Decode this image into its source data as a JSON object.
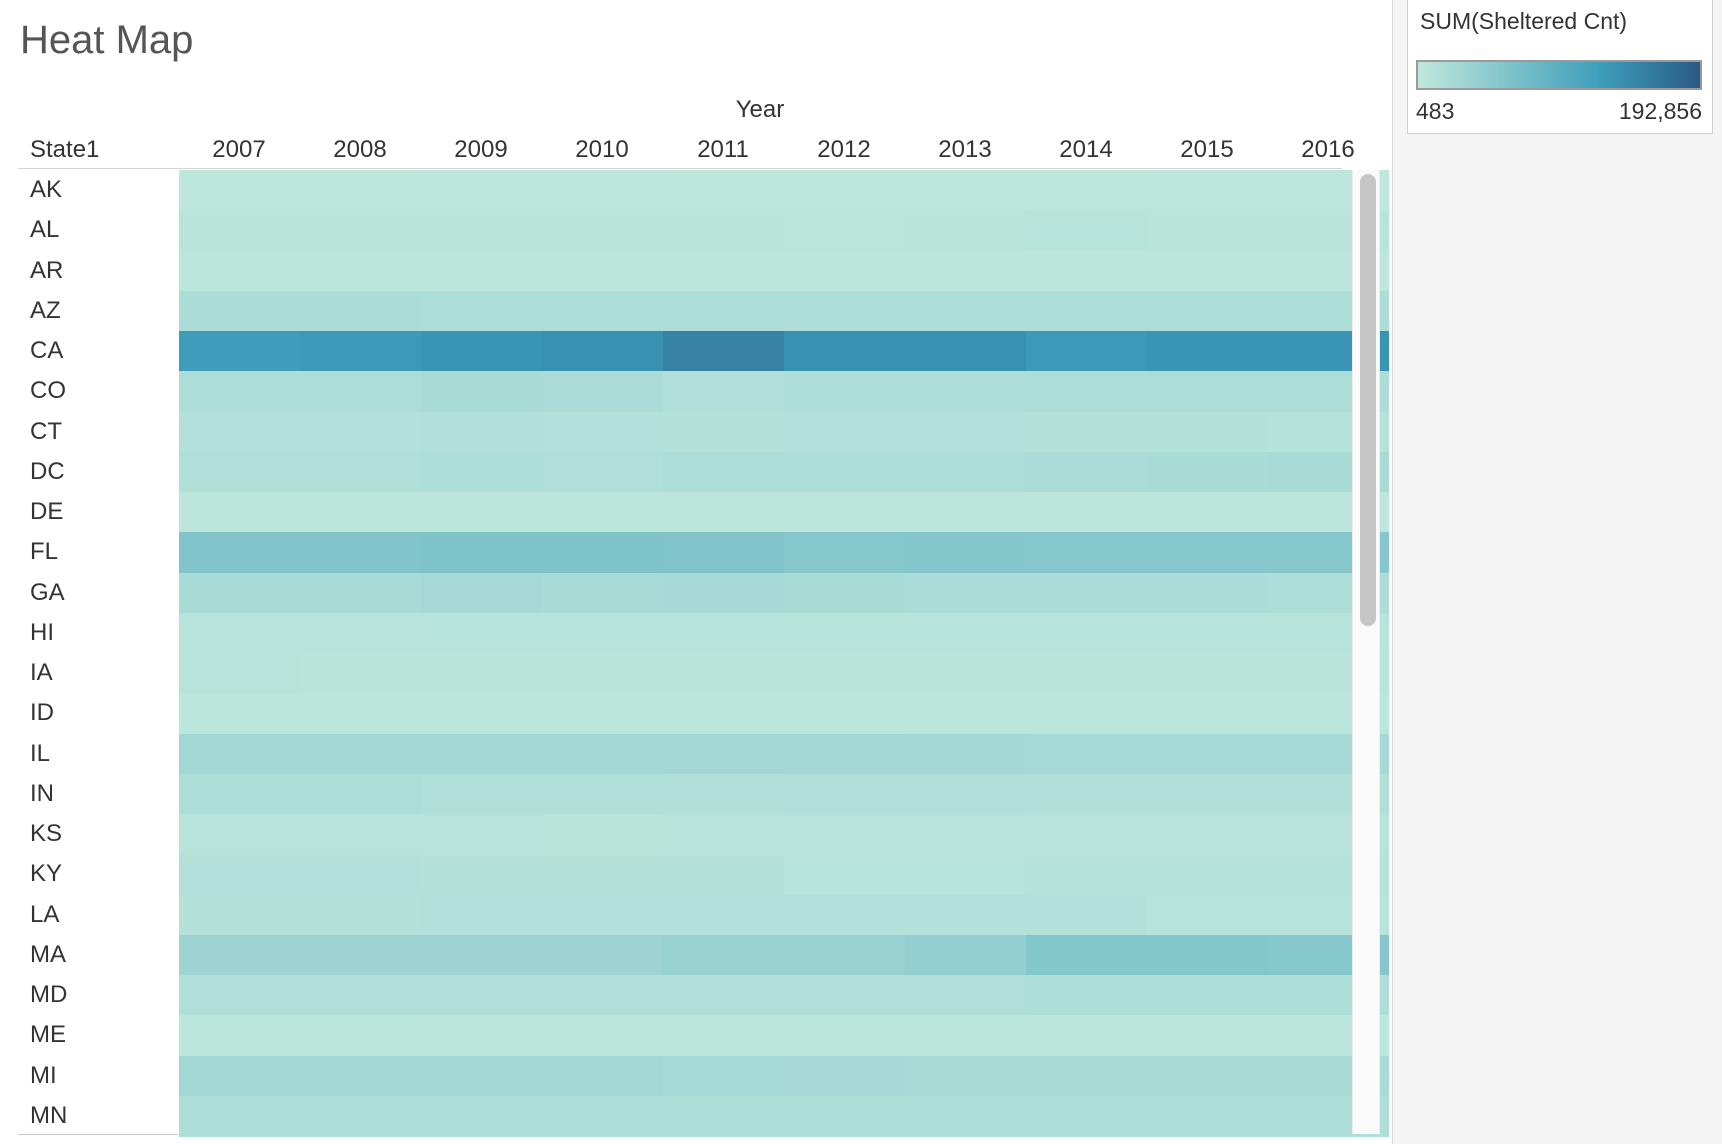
{
  "title": "Heat Map",
  "legend": {
    "title": "SUM(Sheltered Cnt)",
    "min_label": "483",
    "max_label": "192,856",
    "color_low": "#bfe8dc",
    "color_mid": "#3d9dba",
    "color_high": "#2a5a87"
  },
  "chart_data": {
    "type": "heatmap",
    "title": "Heat Map",
    "column_header": "Year",
    "row_header": "State1",
    "measure": "SUM(Sheltered Cnt)",
    "value_range": [
      483,
      192856
    ],
    "years": [
      "2007",
      "2008",
      "2009",
      "2010",
      "2011",
      "2012",
      "2013",
      "2014",
      "2015",
      "2016"
    ],
    "states": [
      "AK",
      "AL",
      "AR",
      "AZ",
      "CA",
      "CO",
      "CT",
      "DC",
      "DE",
      "FL",
      "GA",
      "HI",
      "IA",
      "ID",
      "IL",
      "IN",
      "KS",
      "KY",
      "LA",
      "MA",
      "MD",
      "ME",
      "MI",
      "MN"
    ],
    "values": [
      [
        2500,
        2400,
        2300,
        2300,
        2500,
        2600,
        2500,
        2600,
        2300,
        2300
      ],
      [
        7000,
        7000,
        7500,
        7000,
        6500,
        6000,
        7000,
        9000,
        6500,
        6500
      ],
      [
        4000,
        4000,
        3500,
        3000,
        3500,
        3500,
        3500,
        3000,
        3000,
        3000
      ],
      [
        20000,
        20000,
        19000,
        19000,
        19000,
        18000,
        19000,
        19000,
        18000,
        18000
      ],
      [
        125000,
        130000,
        135000,
        138000,
        152000,
        138000,
        138000,
        130000,
        135000,
        135000
      ],
      [
        18000,
        18000,
        21000,
        20000,
        16000,
        18000,
        17000,
        18000,
        19000,
        19000
      ],
      [
        12000,
        12000,
        13000,
        12000,
        11000,
        12000,
        12000,
        11000,
        11000,
        10000
      ],
      [
        15000,
        15000,
        17000,
        16000,
        18000,
        18000,
        18000,
        20000,
        21000,
        22000
      ],
      [
        3000,
        3000,
        3000,
        3000,
        3000,
        3000,
        3000,
        3000,
        3000,
        3000
      ],
      [
        60000,
        60000,
        62000,
        62000,
        60000,
        55000,
        58000,
        55000,
        56000,
        56000
      ],
      [
        22000,
        22000,
        25000,
        23000,
        24000,
        21000,
        20000,
        20000,
        20000,
        19000
      ],
      [
        8000,
        8000,
        9000,
        9000,
        9000,
        9000,
        9000,
        9000,
        9000,
        9000
      ],
      [
        8000,
        7500,
        7500,
        7500,
        7500,
        7500,
        7000,
        7000,
        7000,
        7000
      ],
      [
        4500,
        4500,
        4500,
        4500,
        4500,
        4500,
        4500,
        4500,
        4500,
        4500
      ],
      [
        29000,
        29000,
        29000,
        29000,
        28000,
        28000,
        27000,
        26000,
        26000,
        26000
      ],
      [
        18000,
        18000,
        15000,
        15000,
        14000,
        16000,
        16000,
        14000,
        14000,
        14000
      ],
      [
        8000,
        8000,
        8000,
        7000,
        8000,
        8000,
        8000,
        8000,
        8000,
        8000
      ],
      [
        12000,
        12000,
        11000,
        11000,
        11000,
        9000,
        9000,
        10000,
        10000,
        10000
      ],
      [
        11000,
        11000,
        12000,
        12000,
        12000,
        12000,
        12000,
        12000,
        9000,
        9000
      ],
      [
        33000,
        33000,
        33000,
        33000,
        38000,
        38000,
        42000,
        58000,
        58000,
        55000
      ],
      [
        15000,
        15000,
        16000,
        16000,
        16000,
        16000,
        16000,
        17000,
        17000,
        17000
      ],
      [
        4000,
        4000,
        3500,
        3500,
        3500,
        4000,
        4500,
        4000,
        4000,
        4000
      ],
      [
        29000,
        29000,
        28000,
        28000,
        26000,
        24000,
        23000,
        22000,
        22000,
        22000
      ],
      [
        19000,
        19000,
        19000,
        19000,
        18000,
        18000,
        18000,
        17000,
        17000,
        17000
      ]
    ]
  }
}
